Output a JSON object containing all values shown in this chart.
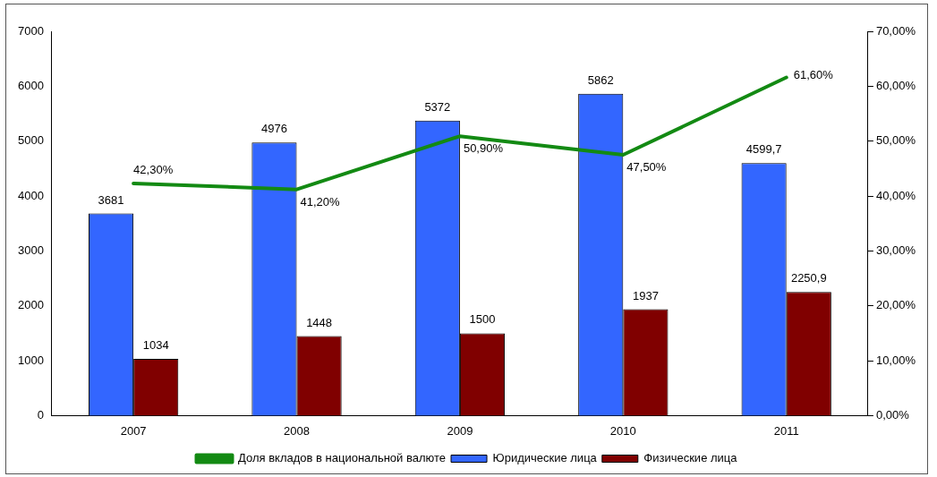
{
  "chart_data": {
    "type": "bar",
    "categories": [
      "2007",
      "2008",
      "2009",
      "2010",
      "2011"
    ],
    "series": [
      {
        "name": "Юридические лица",
        "color": "#3366ff",
        "values": [
          3681,
          4976,
          5372,
          5862,
          4599.7
        ],
        "value_labels": [
          "3681",
          "4976",
          "5372",
          "5862",
          "4599,7"
        ]
      },
      {
        "name": "Физические лица",
        "color": "#800000",
        "values": [
          1034,
          1448,
          1500,
          1937,
          2250.9
        ],
        "value_labels": [
          "1034",
          "1448",
          "1500",
          "1937",
          "2250,9"
        ]
      },
      {
        "name": "Доля вкладов в национальной валюте",
        "type": "line",
        "axis": "y2",
        "color": "#138a13",
        "values": [
          42.3,
          41.2,
          50.9,
          47.5,
          61.6
        ],
        "value_labels": [
          "42,30%",
          "41,20%",
          "50,90%",
          "47,50%",
          "61,60%"
        ]
      }
    ],
    "ylim": [
      0,
      7000
    ],
    "yticks": [
      0,
      1000,
      2000,
      3000,
      4000,
      5000,
      6000,
      7000
    ],
    "y2lim": [
      0,
      70
    ],
    "y2ticks": [
      {
        "value": 0,
        "label": "0,00%"
      },
      {
        "value": 10,
        "label": "10,00%"
      },
      {
        "value": 20,
        "label": "20,00%"
      },
      {
        "value": 30,
        "label": "30,00%"
      },
      {
        "value": 40,
        "label": "40,00%"
      },
      {
        "value": 50,
        "label": "50,00%"
      },
      {
        "value": 60,
        "label": "60,00%"
      },
      {
        "value": 70,
        "label": "70,00%"
      }
    ],
    "grid": false,
    "legend": "bottom",
    "marker": "none",
    "line_style": "solid"
  }
}
